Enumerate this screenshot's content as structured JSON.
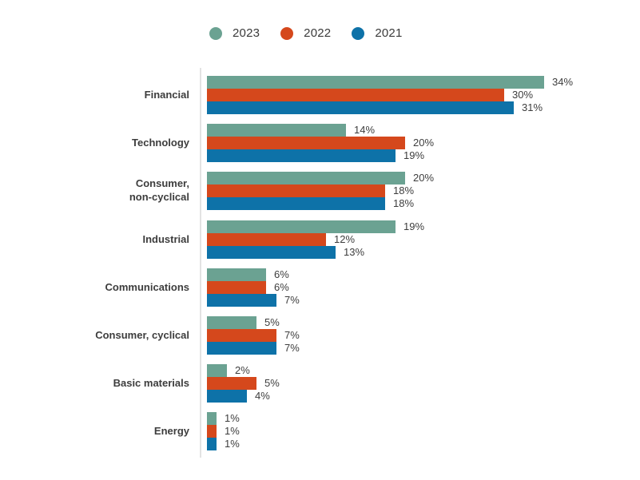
{
  "legend": {
    "items": [
      {
        "label": "2023",
        "color": "#6ba292"
      },
      {
        "label": "2022",
        "color": "#d5481c"
      },
      {
        "label": "2021",
        "color": "#0e72a8"
      }
    ]
  },
  "chart_data": {
    "type": "bar",
    "orientation": "horizontal",
    "title": "",
    "xlabel": "",
    "ylabel": "",
    "grid": false,
    "legend_position": "top",
    "value_labels": true,
    "value_suffix": "%",
    "xlim": [
      0,
      43
    ],
    "categories": [
      "Financial",
      "Technology",
      "Consumer,\nnon-cyclical",
      "Industrial",
      "Communications",
      "Consumer, cyclical",
      "Basic materials",
      "Energy"
    ],
    "series": [
      {
        "name": "2023",
        "color": "#6ba292",
        "values": [
          34,
          14,
          20,
          19,
          6,
          5,
          2,
          1
        ]
      },
      {
        "name": "2022",
        "color": "#d5481c",
        "values": [
          30,
          20,
          18,
          12,
          6,
          7,
          5,
          1
        ]
      },
      {
        "name": "2021",
        "color": "#0e72a8",
        "values": [
          31,
          19,
          18,
          13,
          7,
          7,
          4,
          1
        ]
      }
    ]
  }
}
